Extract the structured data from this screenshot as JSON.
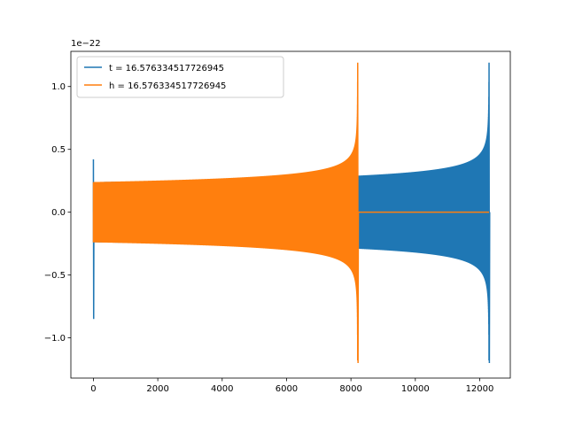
{
  "chart_data": {
    "type": "line",
    "title": "",
    "xlabel": "",
    "ylabel": "",
    "y_offset_label": "1e−22",
    "xlim": [
      -700,
      12950
    ],
    "ylim": [
      -1.32,
      1.28
    ],
    "x_ticks": [
      0,
      2000,
      4000,
      6000,
      8000,
      10000,
      12000
    ],
    "x_tick_labels": [
      "0",
      "2000",
      "4000",
      "6000",
      "8000",
      "10000",
      "12000"
    ],
    "y_ticks": [
      -1.0,
      -0.5,
      0.0,
      0.5,
      1.0
    ],
    "y_tick_labels": [
      "−1.0",
      "−0.5",
      "0.0",
      "0.5",
      "1.0"
    ],
    "grid": false,
    "legend_placement": "upper-left",
    "series": [
      {
        "name": "t = 16.576334517726945",
        "color": "#1f77b4",
        "kind": "chirp",
        "x_start": 0,
        "x_end": 12290,
        "start_spike": {
          "x": 0,
          "min": -0.85,
          "max": 0.42
        },
        "amplitude_start": 0.24,
        "amplitude_at_end": 1.19,
        "min_at_end": -1.2
      },
      {
        "name": "h = 16.576334517726945",
        "color": "#ff7f0e",
        "kind": "chirp-then-flat",
        "x_start": 0,
        "x_end": 8210,
        "flat_until": 12290,
        "amplitude_start": 0.24,
        "amplitude_at_end": 1.19,
        "min_at_end": -1.2
      }
    ]
  }
}
